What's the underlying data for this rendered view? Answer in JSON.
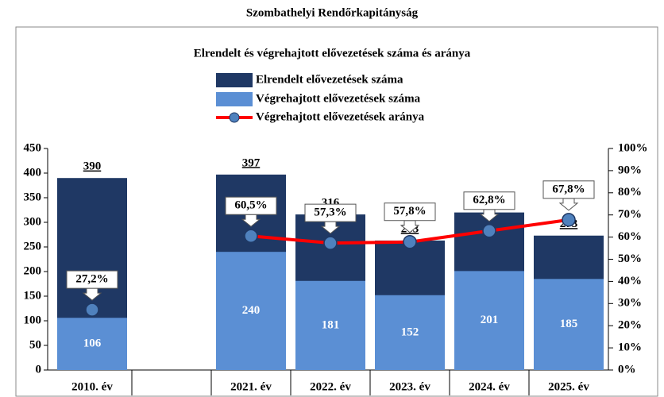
{
  "header": {
    "title": "Szombathelyi Rendőrkapitányság"
  },
  "chart_data": {
    "type": "bar-line",
    "title": "Elrendelt és végrehajtott elővezetések száma és aránya",
    "categories": [
      "2010. év",
      null,
      "2021. év",
      "2022. év",
      "2023. év",
      "2024. év",
      "2025. év"
    ],
    "series": [
      {
        "name": "Elrendelt elővezetések száma",
        "color": "#1f3864",
        "values": [
          390,
          null,
          397,
          316,
          263,
          320,
          273
        ]
      },
      {
        "name": "Végrehajtott elővezetések száma",
        "color": "#5b8fd4",
        "values": [
          106,
          null,
          240,
          181,
          152,
          201,
          185
        ]
      },
      {
        "name": "Végrehajtott elővezetések aránya",
        "color": "#ff0000",
        "marker_color": "#4f81bd",
        "axis": "y2",
        "type": "line",
        "values": [
          27.2,
          null,
          60.5,
          57.3,
          57.8,
          62.8,
          67.8
        ],
        "value_labels": [
          "27,2%",
          null,
          "60,5%",
          "57,3%",
          "57,8%",
          "62,8%",
          "67,8%"
        ]
      }
    ],
    "ylim": [
      0,
      450
    ],
    "yticks": [
      0,
      50,
      100,
      150,
      200,
      250,
      300,
      350,
      400,
      450
    ],
    "y2lim": [
      0,
      100
    ],
    "y2ticks": [
      {
        "value": 0,
        "label": "0%"
      },
      {
        "value": 10,
        "label": "10%"
      },
      {
        "value": 20,
        "label": "20%"
      },
      {
        "value": 30,
        "label": "30%"
      },
      {
        "value": 40,
        "label": "40%"
      },
      {
        "value": 50,
        "label": "50%"
      },
      {
        "value": 60,
        "label": "60%"
      },
      {
        "value": 70,
        "label": "70%"
      },
      {
        "value": 80,
        "label": "80%"
      },
      {
        "value": 90,
        "label": "90%"
      },
      {
        "value": 100,
        "label": "100%"
      }
    ],
    "legend": "top"
  }
}
